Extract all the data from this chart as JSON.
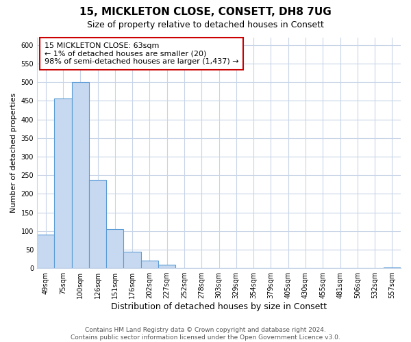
{
  "title": "15, MICKLETON CLOSE, CONSETT, DH8 7UG",
  "subtitle": "Size of property relative to detached houses in Consett",
  "xlabel": "Distribution of detached houses by size in Consett",
  "ylabel": "Number of detached properties",
  "bin_labels": [
    "49sqm",
    "75sqm",
    "100sqm",
    "126sqm",
    "151sqm",
    "176sqm",
    "202sqm",
    "227sqm",
    "252sqm",
    "278sqm",
    "303sqm",
    "329sqm",
    "354sqm",
    "379sqm",
    "405sqm",
    "430sqm",
    "455sqm",
    "481sqm",
    "506sqm",
    "532sqm",
    "557sqm"
  ],
  "bar_values": [
    90,
    457,
    500,
    237,
    105,
    45,
    20,
    10,
    0,
    0,
    0,
    0,
    0,
    0,
    0,
    0,
    0,
    0,
    0,
    0,
    2
  ],
  "bar_color": "#c6d9f0",
  "bar_edge_color": "#5b9bd5",
  "annotation_line1": "15 MICKLETON CLOSE: 63sqm",
  "annotation_line2": "← 1% of detached houses are smaller (20)",
  "annotation_line3": "98% of semi-detached houses are larger (1,437) →",
  "annotation_box_color": "#ffffff",
  "annotation_box_edge": "#cc0000",
  "ylim": [
    0,
    620
  ],
  "yticks": [
    0,
    50,
    100,
    150,
    200,
    250,
    300,
    350,
    400,
    450,
    500,
    550,
    600
  ],
  "footnote": "Contains HM Land Registry data © Crown copyright and database right 2024.\nContains public sector information licensed under the Open Government Licence v3.0.",
  "fig_bg_color": "#ffffff",
  "plot_bg_color": "#ffffff",
  "grid_color": "#c8d4e8",
  "title_fontsize": 11,
  "subtitle_fontsize": 9,
  "xlabel_fontsize": 9,
  "ylabel_fontsize": 8,
  "tick_fontsize": 7,
  "annotation_fontsize": 8,
  "footnote_fontsize": 6.5
}
